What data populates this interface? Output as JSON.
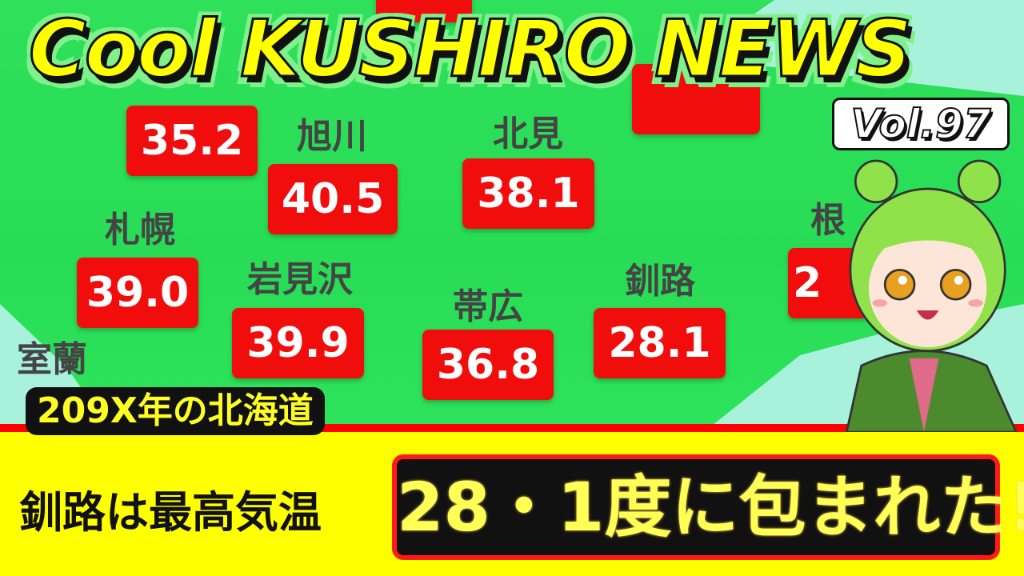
{
  "title": "Cool KUSHIRO NEWS",
  "volume": "Vol.97",
  "map": {
    "cities": [
      {
        "name": "旭川",
        "temp": "40.5"
      },
      {
        "name": "北見",
        "temp": "38.1"
      },
      {
        "name": "札幌",
        "temp": "39.0"
      },
      {
        "name": "岩見沢",
        "temp": "39.9"
      },
      {
        "name": "帯広",
        "temp": "36.8"
      },
      {
        "name": "釧路",
        "temp": "28.1"
      }
    ],
    "partial": {
      "temp_top_left": "35.2",
      "city_right": "根",
      "temp_right": "2",
      "city_bottom_left": "室蘭"
    }
  },
  "subtitle": "209X年の北海道",
  "headline": {
    "lead": "釧路は最高気温",
    "highlight": "28・1度に包まれた!"
  },
  "colors": {
    "map_green": "#2fe05a",
    "temp_box": "#f20d0d",
    "banner": "#ffff00",
    "title": "#ffff00"
  }
}
